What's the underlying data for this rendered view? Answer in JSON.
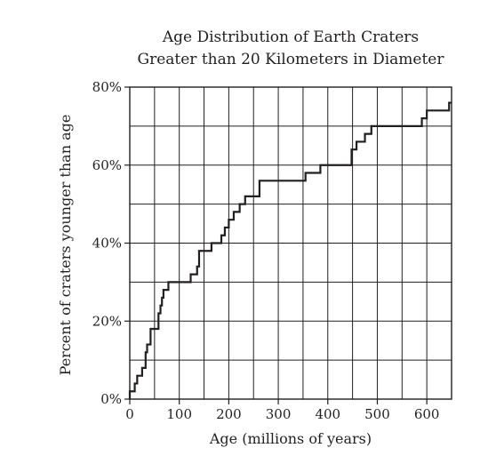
{
  "chart_data": {
    "type": "line",
    "step": true,
    "title": [
      "Age Distribution of Earth Craters",
      "Greater than 20 Kilometers in Diameter"
    ],
    "xlabel": "Age (millions of years)",
    "ylabel": "Percent of craters younger than age",
    "xlim": [
      0,
      650
    ],
    "ylim": [
      0,
      80
    ],
    "xticks": [
      0,
      100,
      200,
      300,
      400,
      500,
      600
    ],
    "xtick_labels": [
      "0",
      "100",
      "200",
      "300",
      "400",
      "500",
      "600"
    ],
    "yticks": [
      0,
      20,
      40,
      60,
      80
    ],
    "ytick_labels": [
      "0%",
      "20%",
      "40%",
      "60%",
      "80%"
    ],
    "grid": {
      "x_step": 50,
      "y_step": 10
    },
    "series": [
      {
        "points": [
          [
            0,
            0
          ],
          [
            0,
            2
          ],
          [
            10,
            2
          ],
          [
            10,
            4
          ],
          [
            15,
            4
          ],
          [
            15,
            6
          ],
          [
            25,
            6
          ],
          [
            25,
            8
          ],
          [
            32,
            8
          ],
          [
            32,
            12
          ],
          [
            35,
            12
          ],
          [
            35,
            14
          ],
          [
            42,
            14
          ],
          [
            42,
            18
          ],
          [
            58,
            18
          ],
          [
            58,
            22
          ],
          [
            62,
            22
          ],
          [
            62,
            24
          ],
          [
            65,
            24
          ],
          [
            65,
            26
          ],
          [
            68,
            26
          ],
          [
            68,
            28
          ],
          [
            78,
            28
          ],
          [
            78,
            30
          ],
          [
            123,
            30
          ],
          [
            123,
            32
          ],
          [
            136,
            32
          ],
          [
            136,
            34
          ],
          [
            140,
            34
          ],
          [
            140,
            38
          ],
          [
            165,
            38
          ],
          [
            165,
            40
          ],
          [
            185,
            40
          ],
          [
            185,
            42
          ],
          [
            192,
            42
          ],
          [
            192,
            44
          ],
          [
            200,
            44
          ],
          [
            200,
            46
          ],
          [
            210,
            46
          ],
          [
            210,
            48
          ],
          [
            222,
            48
          ],
          [
            222,
            50
          ],
          [
            233,
            50
          ],
          [
            233,
            52
          ],
          [
            262,
            52
          ],
          [
            262,
            56
          ],
          [
            355,
            56
          ],
          [
            355,
            58
          ],
          [
            385,
            58
          ],
          [
            385,
            60
          ],
          [
            448,
            60
          ],
          [
            448,
            64
          ],
          [
            458,
            64
          ],
          [
            458,
            66
          ],
          [
            475,
            66
          ],
          [
            475,
            68
          ],
          [
            488,
            68
          ],
          [
            488,
            70
          ],
          [
            590,
            70
          ],
          [
            590,
            72
          ],
          [
            600,
            72
          ],
          [
            600,
            74
          ],
          [
            645,
            74
          ],
          [
            645,
            76
          ],
          [
            650,
            76
          ]
        ]
      }
    ]
  }
}
